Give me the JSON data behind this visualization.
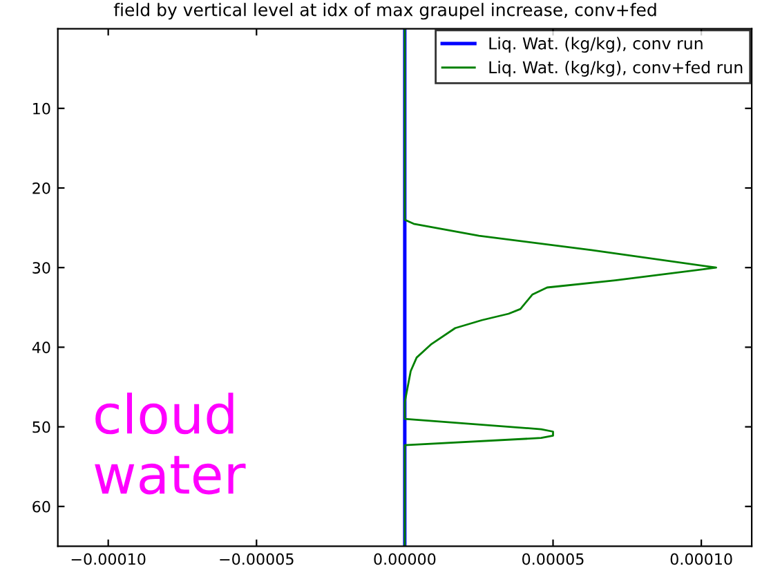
{
  "chart_data": {
    "type": "line",
    "title": "field by vertical level at idx of max graupel increase, conv+fed",
    "series": [
      {
        "name": "Liq. Wat. (kg/kg), conv run",
        "color": "#0000ff",
        "x": [
          0,
          0
        ],
        "values": [
          0,
          65
        ]
      },
      {
        "name": "Liq. Wat. (kg/kg), conv+fed run",
        "color": "#008000",
        "x": [
          0,
          0,
          3e-06,
          2.5e-05,
          6.3e-05,
          0.000105,
          7.1e-05,
          4.8e-05,
          4.3e-05,
          3.9e-05,
          3.5e-05,
          2.6e-05,
          1.7e-05,
          9e-06,
          4e-06,
          2e-06,
          0,
          0,
          4.6e-05,
          5e-05,
          5e-05,
          4.6e-05,
          0,
          0
        ],
        "values": [
          0,
          24,
          24.5,
          26,
          27.8,
          30,
          31.6,
          32.5,
          33.4,
          35.2,
          35.8,
          36.6,
          37.6,
          39.6,
          41.3,
          43,
          46.9,
          49,
          50.3,
          50.6,
          51.1,
          51.4,
          52.3,
          65
        ]
      }
    ],
    "xlim": [
      -0.000117,
      0.000117
    ],
    "xticks": [
      {
        "value": -0.0001,
        "label": "−0.00010"
      },
      {
        "value": -5e-05,
        "label": "−0.00005"
      },
      {
        "value": 0,
        "label": "0.00000"
      },
      {
        "value": 5e-05,
        "label": "0.00005"
      },
      {
        "value": 0.0001,
        "label": "0.00010"
      }
    ],
    "ylim": [
      65,
      0
    ],
    "yticks": [
      10,
      20,
      30,
      40,
      50,
      60
    ],
    "legend": "top right",
    "grid": false,
    "marker": "none",
    "line_style": "solid",
    "annotations": [
      "cloud\nwater"
    ]
  }
}
